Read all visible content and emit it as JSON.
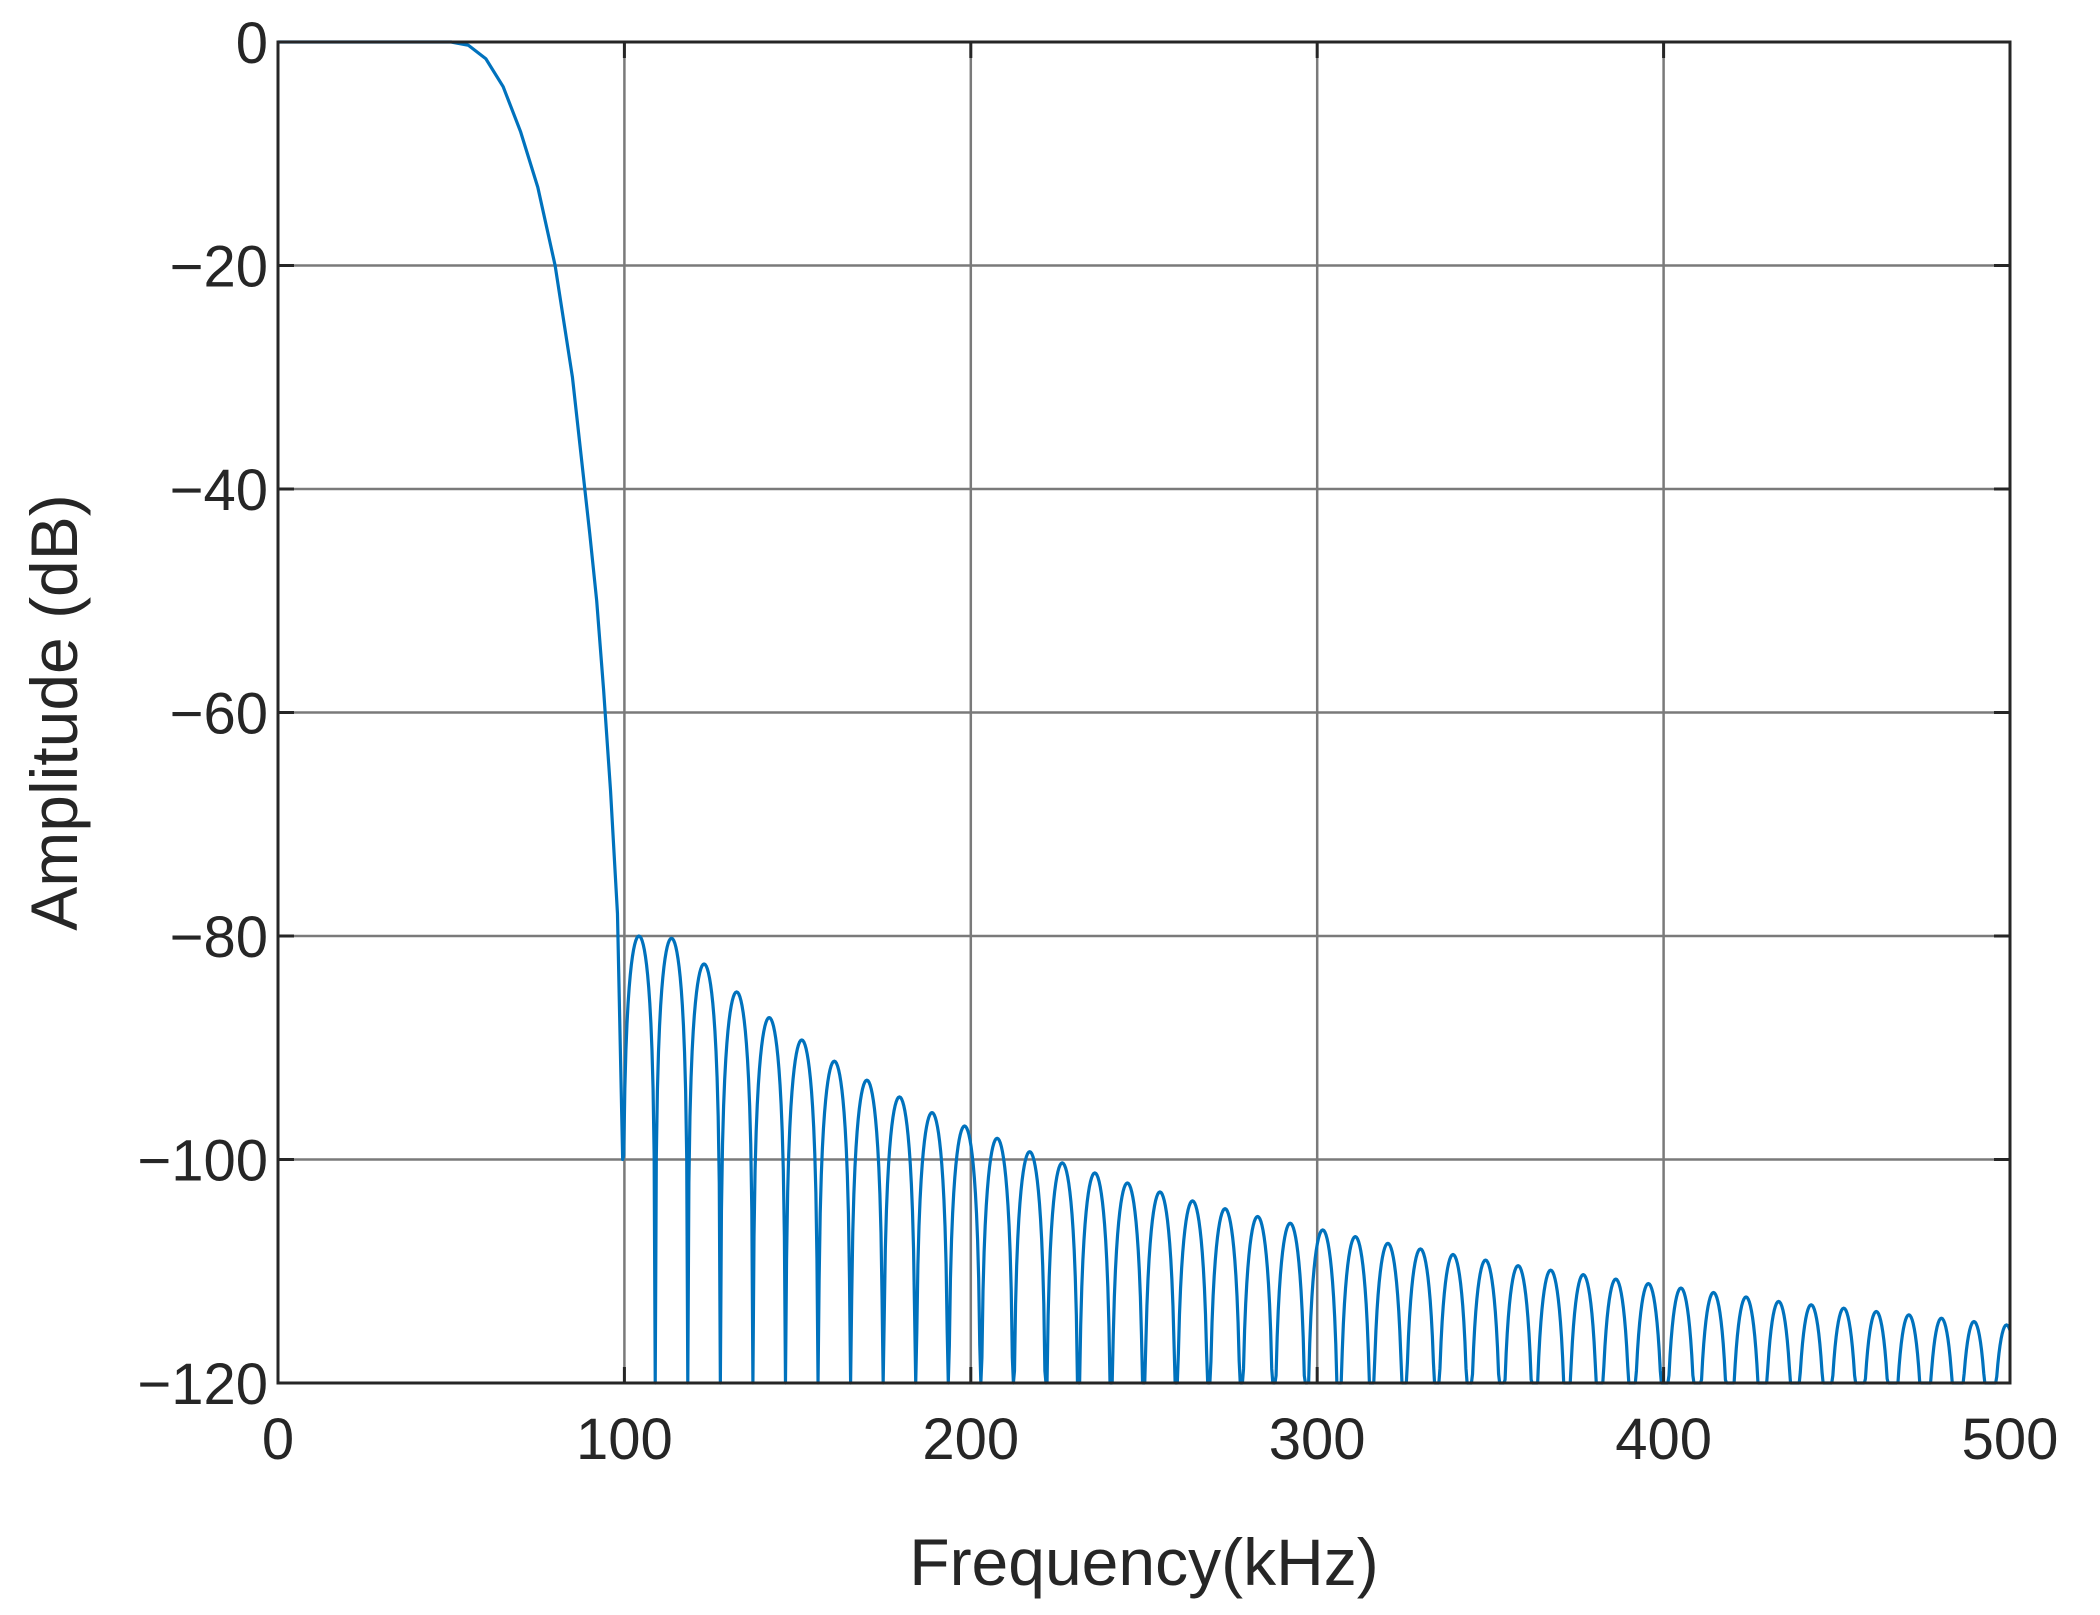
{
  "chart_data": {
    "type": "line",
    "title": "",
    "xlabel": "Frequency(kHz)",
    "ylabel": "Amplitude (dB)",
    "xlim": [
      0,
      500
    ],
    "ylim": [
      -120,
      0
    ],
    "x_ticks": [
      "0",
      "100",
      "200",
      "300",
      "400",
      "500"
    ],
    "y_ticks": [
      "0",
      "−20",
      "−40",
      "−60",
      "−80",
      "−100",
      "−120"
    ],
    "grid": true,
    "legend": "none",
    "series_color": "#0072BD",
    "series": [
      {
        "x": [
          0,
          20,
          40,
          50,
          55,
          60,
          65,
          70,
          75,
          80,
          85,
          90,
          92,
          94,
          96,
          98,
          99.5
        ],
        "values": [
          0,
          0,
          0,
          0,
          -0.3,
          -1.5,
          -4,
          -8,
          -13,
          -20,
          -30,
          -44,
          -50,
          -58,
          -67,
          -78,
          -100
        ]
      }
    ],
    "sidelobes": {
      "start_khz": 99.5,
      "null_spacing_khz": 9.4,
      "peak_db": [
        -80,
        -80.2,
        -82.5,
        -85,
        -87.3,
        -89.3,
        -91.2,
        -92.9,
        -94.4,
        -95.8,
        -97.0,
        -98.1,
        -99.3,
        -100.3,
        -101.2,
        -102.1,
        -102.9,
        -103.7,
        -104.4,
        -105.1,
        -105.7,
        -106.3,
        -106.9,
        -107.5,
        -108.0,
        -108.5,
        -109.0,
        -109.5,
        -109.9,
        -110.3,
        -110.7,
        -111.1,
        -111.5,
        -111.9,
        -112.3,
        -112.7,
        -113.0,
        -113.3,
        -113.6,
        -113.9,
        -114.2,
        -114.5,
        -114.8,
        -115.1
      ]
    }
  }
}
